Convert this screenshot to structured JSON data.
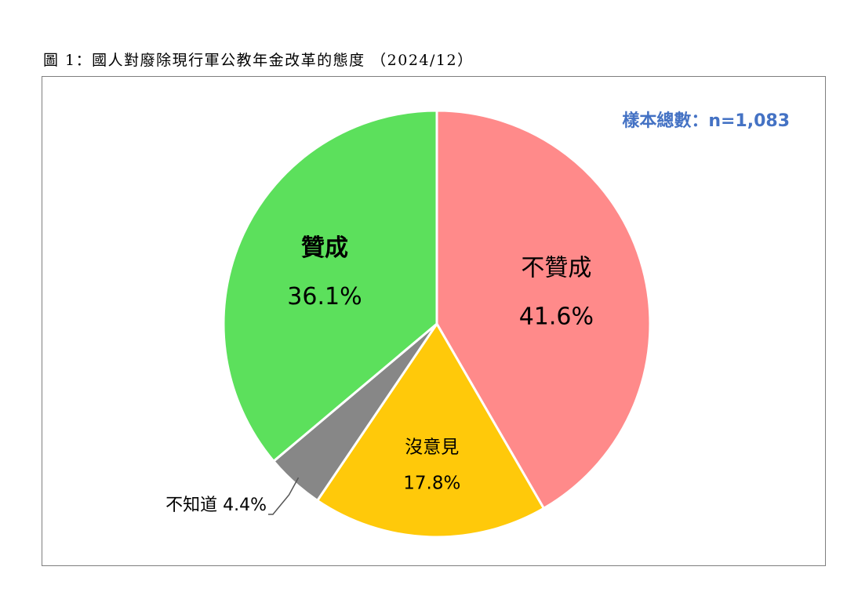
{
  "figure_title": "圖 1：國人對廢除現行軍公教年金改革的態度 （2024/12）",
  "sample_note": "樣本總數：n=1,083",
  "colors": {
    "border": "#7f7f7f",
    "sample_note": "#4472c4"
  },
  "chart_data": {
    "type": "pie",
    "start": "12 o'clock",
    "direction": "clockwise",
    "legend": "none",
    "slices": [
      {
        "label": "不贊成",
        "value": 41.6,
        "value_label": "41.6%",
        "color": "#ff8a8a"
      },
      {
        "label": "沒意見",
        "value": 17.8,
        "value_label": "17.8%",
        "color": "#ffc90a"
      },
      {
        "label": "不知道",
        "value": 4.4,
        "value_label": "4.4%",
        "color": "#878787",
        "label_outside": true
      },
      {
        "label": "贊成",
        "value": 36.1,
        "value_label": "36.1%",
        "color": "#5ce05c"
      }
    ]
  }
}
